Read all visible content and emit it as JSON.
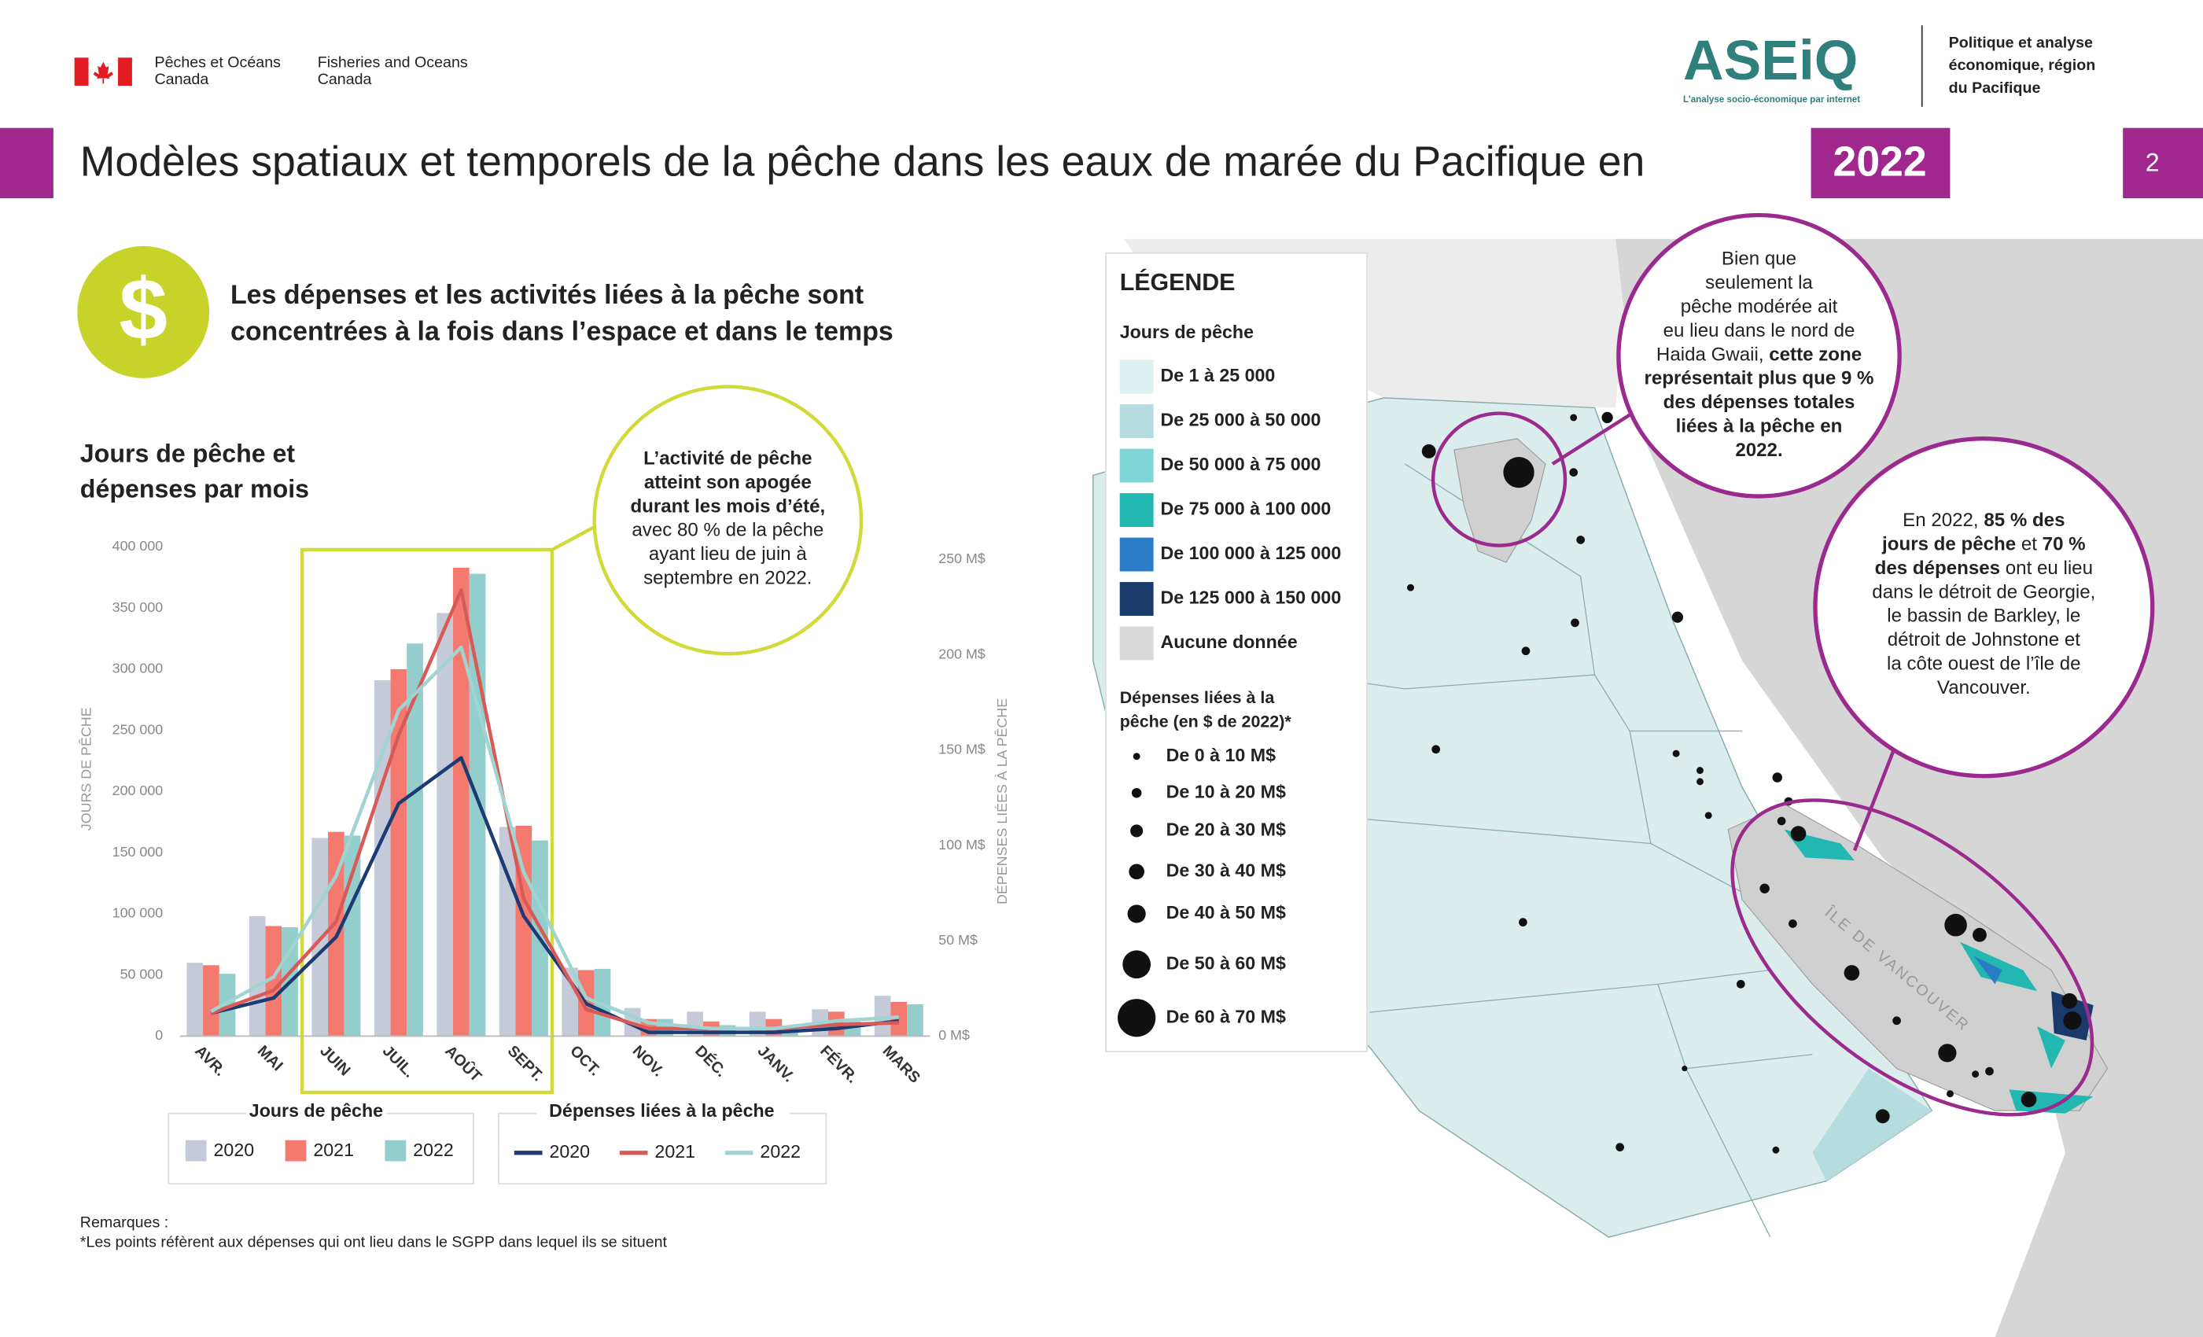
{
  "header": {
    "dept_fr": [
      "Pêches et Océans",
      "Canada"
    ],
    "dept_en": [
      "Fisheries and Oceans",
      "Canada"
    ],
    "logo": "ASEiQ",
    "logo_tagline": "L’analyse socio-économique par internet",
    "unit": [
      "Politique et analyse",
      "économique, région",
      "du Pacifique"
    ],
    "title": "Modèles spatiaux et temporels de la pêche dans les eaux de marée du Pacifique en",
    "year": "2022",
    "page": "2"
  },
  "section": {
    "icon": "$",
    "heading": [
      "Les dépenses et les activités liées à la pêche sont",
      "concentrées à la fois dans l’espace et dans le temps"
    ]
  },
  "chart_data": {
    "type": "bar",
    "title": [
      "Jours de pêche et",
      "dépenses par mois"
    ],
    "ylabel": "JOURS DE PÊCHE",
    "y2label": "DÉPENSES LIÉES À LA PÊCHE",
    "categories": [
      "AVR.",
      "MAI",
      "JUIN",
      "JUIL.",
      "AOÛT",
      "SEPT.",
      "OCT.",
      "NOV.",
      "DÉC.",
      "JANV.",
      "FÉVR.",
      "MARS"
    ],
    "ylim": [
      0,
      400000
    ],
    "yticks": [
      0,
      {
        "value": 50000,
        "label": "50 000"
      },
      {
        "value": 100000,
        "label": "100 000"
      },
      {
        "value": 150000,
        "label": "150 000"
      },
      {
        "value": 200000,
        "label": "200 000"
      },
      {
        "value": 250000,
        "label": "250 000"
      },
      {
        "value": 300000,
        "label": "300 000"
      },
      {
        "value": 350000,
        "label": "350 000"
      },
      {
        "value": 400000,
        "label": "400 000"
      }
    ],
    "y2lim": [
      0,
      250
    ],
    "y2ticks": [
      {
        "value": 0,
        "label": "0 M$"
      },
      {
        "value": 50,
        "label": "50 M$"
      },
      {
        "value": 100,
        "label": "100 M$"
      },
      {
        "value": 150,
        "label": "150 M$"
      },
      {
        "value": 200,
        "label": "200 M$"
      },
      {
        "value": 250,
        "label": "250 M$"
      }
    ],
    "grid": false,
    "bar_legend_title": "Jours de pêche",
    "line_legend_title": "Dépenses liées à la pêche",
    "series": [
      {
        "name": "2020",
        "type": "bar",
        "color": "#c5cad9",
        "values": [
          60000,
          98000,
          162000,
          291000,
          346000,
          171000,
          56000,
          23000,
          20000,
          20000,
          22000,
          33000
        ]
      },
      {
        "name": "2021",
        "type": "bar",
        "color": "#f47a6f",
        "values": [
          58000,
          90000,
          167000,
          300000,
          383000,
          172000,
          54000,
          14000,
          12000,
          14000,
          20000,
          28000
        ]
      },
      {
        "name": "2022",
        "type": "bar",
        "color": "#93cdcc",
        "values": [
          51000,
          89000,
          164000,
          321000,
          378000,
          160000,
          55000,
          14000,
          9000,
          7000,
          12000,
          26000
        ]
      },
      {
        "name": "2020",
        "type": "line",
        "axis": "y2",
        "color": "#1c3a73",
        "values": [
          12,
          20,
          52,
          122,
          146,
          63,
          17,
          2,
          2,
          2,
          4,
          8
        ]
      },
      {
        "name": "2021",
        "type": "line",
        "axis": "y2",
        "color": "#d85a57",
        "values": [
          12,
          24,
          60,
          158,
          234,
          72,
          14,
          4,
          4,
          4,
          6,
          7
        ]
      },
      {
        "name": "2022",
        "type": "line",
        "axis": "y2",
        "color": "#9fd4d2",
        "values": [
          13,
          31,
          84,
          171,
          204,
          86,
          20,
          7,
          4,
          4,
          8,
          10
        ]
      }
    ]
  },
  "chart_callout": [
    [
      {
        "text": "L’activité de pêche",
        "b": true
      }
    ],
    [
      {
        "text": "atteint son apogée",
        "b": true
      }
    ],
    [
      {
        "text": "durant les mois d’été,",
        "b": true
      }
    ],
    [
      {
        "text": "avec 80 % de la pêche"
      }
    ],
    [
      {
        "text": "ayant lieu de juin à"
      }
    ],
    [
      {
        "text": "septembre en 2022."
      }
    ]
  ],
  "map": {
    "legend_title": "LÉGENDE",
    "days_title": "Jours de pêche",
    "days": [
      {
        "label": "De 1 à 25 000",
        "color": "#dff0f0"
      },
      {
        "label": "De 25 000 à 50 000",
        "color": "#b5dcdf"
      },
      {
        "label": "De 50 000 à 75 000",
        "color": "#7fd6d6"
      },
      {
        "label": "De 75 000 à 100 000",
        "color": "#22b7b0"
      },
      {
        "label": "De 100 000 à 125 000",
        "color": "#2a7cc4"
      },
      {
        "label": "De 125 000 à 150 000",
        "color": "#1a3a6b"
      },
      {
        "label": "Aucune donnée",
        "color": "#d9d9d9"
      }
    ],
    "spend_title": [
      "Dépenses liées à la",
      "pêche (en $ de 2022)*"
    ],
    "spend": [
      "De 0 à 10 M$",
      "De 10 à 20 M$",
      "De 20 à 30 M$",
      "De 30 à 40 M$",
      "De 40 à 50 M$",
      "De 50 à 60 M$",
      "De 60 à 70 M$"
    ],
    "island_label": "ÎLE DE VANCOUVER",
    "callout_north": [
      [
        {
          "text": "Bien que"
        }
      ],
      [
        {
          "text": "seulement la"
        }
      ],
      [
        {
          "text": "pêche modérée ait"
        }
      ],
      [
        {
          "text": "eu lieu dans le nord de"
        }
      ],
      [
        {
          "text": "Haida Gwaii, "
        },
        {
          "text": "cette zone",
          "b": true
        }
      ],
      [
        {
          "text": "représentait plus que 9 %",
          "b": true
        }
      ],
      [
        {
          "text": "des dépenses totales",
          "b": true
        }
      ],
      [
        {
          "text": "liées à la pêche en",
          "b": true
        }
      ],
      [
        {
          "text": "2022.",
          "b": true
        }
      ]
    ],
    "callout_south": [
      [
        {
          "text": "En 2022, "
        },
        {
          "text": "85 % des",
          "b": true
        }
      ],
      [
        {
          "text": "jours de pêche",
          "b": true
        },
        {
          "text": " et "
        },
        {
          "text": "70 %",
          "b": true
        }
      ],
      [
        {
          "text": "des dépenses",
          "b": true
        },
        {
          "text": " ont eu lieu"
        }
      ],
      [
        {
          "text": "dans le détroit de Georgie,"
        }
      ],
      [
        {
          "text": "le bassin de Barkley, le"
        }
      ],
      [
        {
          "text": "détroit de Johnstone et"
        }
      ],
      [
        {
          "text": "la côte ouest de l’île de"
        }
      ],
      [
        {
          "text": "Vancouver."
        }
      ]
    ]
  },
  "notes": {
    "title": "Remarques :",
    "text": "*Les points réfèrent aux dépenses qui ont lieu dans le SGPP dans lequel ils se situent"
  }
}
